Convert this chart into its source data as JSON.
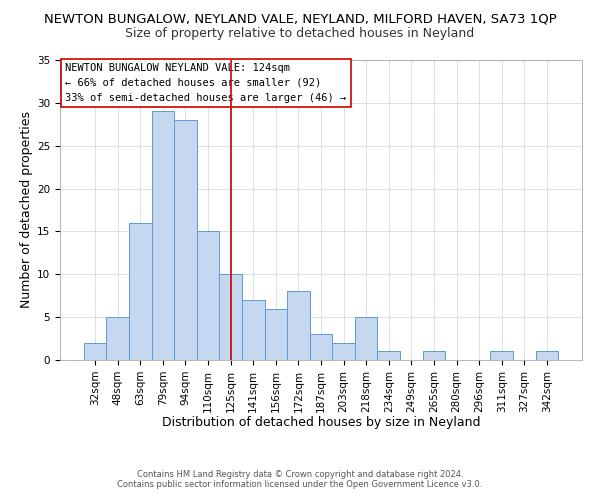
{
  "title": "NEWTON BUNGALOW, NEYLAND VALE, NEYLAND, MILFORD HAVEN, SA73 1QP",
  "subtitle": "Size of property relative to detached houses in Neyland",
  "xlabel": "Distribution of detached houses by size in Neyland",
  "ylabel": "Number of detached properties",
  "footer_line1": "Contains HM Land Registry data © Crown copyright and database right 2024.",
  "footer_line2": "Contains public sector information licensed under the Open Government Licence v3.0.",
  "bin_labels": [
    "32sqm",
    "48sqm",
    "63sqm",
    "79sqm",
    "94sqm",
    "110sqm",
    "125sqm",
    "141sqm",
    "156sqm",
    "172sqm",
    "187sqm",
    "203sqm",
    "218sqm",
    "234sqm",
    "249sqm",
    "265sqm",
    "280sqm",
    "296sqm",
    "311sqm",
    "327sqm",
    "342sqm"
  ],
  "bar_values": [
    2,
    5,
    16,
    29,
    28,
    15,
    10,
    7,
    6,
    8,
    3,
    2,
    5,
    1,
    0,
    1,
    0,
    0,
    1,
    0,
    1
  ],
  "bar_color": "#c5d8f0",
  "bar_edge_color": "#5b9bd5",
  "vline_color": "#cc0000",
  "vline_x_index": 6,
  "ylim": [
    0,
    35
  ],
  "yticks": [
    0,
    5,
    10,
    15,
    20,
    25,
    30,
    35
  ],
  "annotation_title": "NEWTON BUNGALOW NEYLAND VALE: 124sqm",
  "annotation_line2": "← 66% of detached houses are smaller (92)",
  "annotation_line3": "33% of semi-detached houses are larger (46) →",
  "title_fontsize": 9.5,
  "subtitle_fontsize": 9,
  "axis_label_fontsize": 9,
  "tick_fontsize": 7.5,
  "annotation_fontsize": 7.5,
  "footer_fontsize": 6,
  "grid_color": "#d0dce8",
  "spine_color": "#aaaaaa"
}
